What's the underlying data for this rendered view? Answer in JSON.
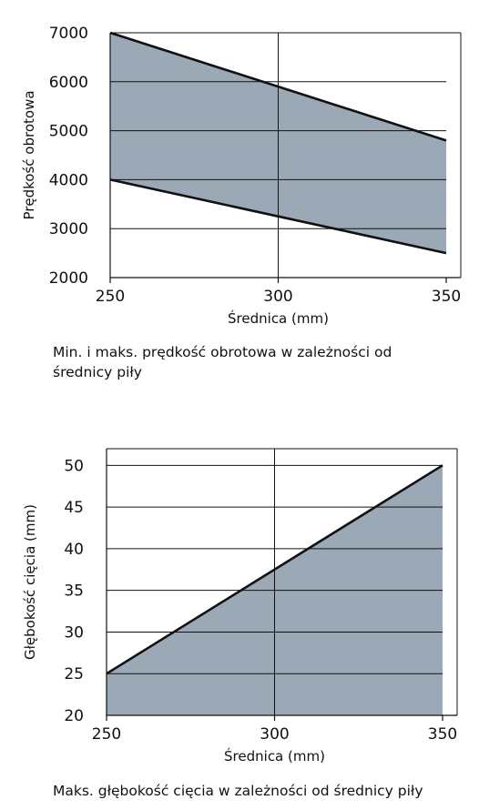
{
  "chart_data": [
    {
      "type": "area",
      "title": "",
      "xlabel": "Średnica (mm)",
      "ylabel": "Prędkość obrotowa",
      "x_ticks": [
        250,
        300,
        350
      ],
      "y_ticks": [
        2000,
        3000,
        4000,
        5000,
        6000,
        7000
      ],
      "xlim": [
        250,
        350
      ],
      "ylim": [
        2000,
        7000
      ],
      "grid": true,
      "fill_color": "#9ba8b6",
      "series": [
        {
          "x": [
            250,
            350
          ],
          "values": [
            7000,
            4800
          ]
        },
        {
          "x": [
            250,
            350
          ],
          "values": [
            4000,
            2500
          ]
        }
      ],
      "caption": "Min. i maks. prędkość obrotowa w zależności od średnicy piły"
    },
    {
      "type": "area",
      "title": "",
      "xlabel": "Średnica (mm)",
      "ylabel": "Głębokość cięcia (mm)",
      "x_ticks": [
        250,
        300,
        350
      ],
      "y_ticks": [
        20,
        25,
        30,
        35,
        40,
        45,
        50
      ],
      "xlim": [
        250,
        350
      ],
      "ylim": [
        20,
        52
      ],
      "grid": true,
      "fill_color": "#9ba8b6",
      "series": [
        {
          "x": [
            250,
            350
          ],
          "values": [
            25,
            50
          ]
        }
      ],
      "caption": "Maks. głębokość cięcia w zależności od średnicy piły"
    }
  ]
}
